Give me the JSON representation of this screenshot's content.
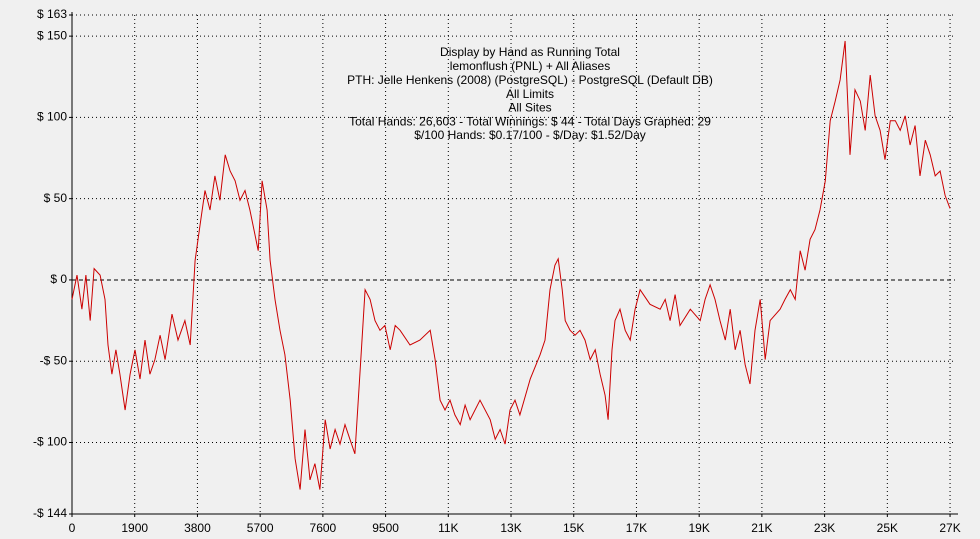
{
  "chart_data": {
    "type": "line",
    "title": "Display by Hand as Running Total",
    "subtitle": [
      "lemonflush (PNL) + All Aliases",
      "PTH: Jelle Henkens (2008) (PostgreSQL) - PostgreSQL (Default DB)",
      "All Limits",
      "All Sites",
      "Total Hands: 26,603 - Total Winnings: $ 44 - Total Days Graphed: 29",
      "$/100 Hands: $0.17/100 - $/Day: $1.52/Day"
    ],
    "x": [
      0,
      150,
      300,
      420,
      550,
      670,
      850,
      1000,
      1090,
      1210,
      1330,
      1450,
      1610,
      1760,
      1910,
      2060,
      2210,
      2360,
      2510,
      2670,
      2820,
      3030,
      3210,
      3420,
      3580,
      3730,
      3880,
      4030,
      4180,
      4330,
      4480,
      4640,
      4790,
      4940,
      5090,
      5240,
      5390,
      5540,
      5640,
      5760,
      5910,
      6000,
      6150,
      6300,
      6450,
      6610,
      6760,
      6910,
      7060,
      7210,
      7360,
      7510,
      7670,
      7820,
      7970,
      8120,
      8270,
      8420,
      8570,
      8730,
      8880,
      9030,
      9180,
      9330,
      9480,
      9640,
      9790,
      9940,
      10240,
      10540,
      10850,
      11000,
      11150,
      11300,
      11450,
      11600,
      11760,
      11910,
      12060,
      12360,
      12670,
      12820,
      12970,
      13120,
      13270,
      13420,
      13570,
      13880,
      14180,
      14330,
      14480,
      14630,
      14730,
      14850,
      14940,
      15090,
      15240,
      15390,
      15540,
      15700,
      15850,
      16000,
      16150,
      16240,
      16360,
      16450,
      16600,
      16760,
      16910,
      17060,
      17210,
      17510,
      17820,
      17970,
      18120,
      18270,
      18420,
      18730,
      19030,
      19180,
      19330,
      19480,
      19630,
      19790,
      19940,
      20090,
      20240,
      20390,
      20540,
      20690,
      20850,
      21000,
      21150,
      21450,
      21600,
      21760,
      21910,
      22060,
      22210,
      22360,
      22510,
      22660,
      22820,
      22970,
      23120,
      23270,
      23420,
      23570,
      23720,
      23880,
      24030,
      24180,
      24330,
      24480,
      24630,
      24790,
      24940,
      25090,
      25240,
      25390,
      25540,
      25690,
      25850,
      26000,
      26150,
      26300,
      26450,
      26600
    ],
    "series": [
      {
        "color": "#cc0000",
        "values": [
          -12,
          3,
          -18,
          3,
          -25,
          7,
          3,
          -12,
          -40,
          -58,
          -43,
          -58,
          -80,
          -58,
          -43,
          -61,
          -37,
          -58,
          -49,
          -34,
          -49,
          -21,
          -37,
          -25,
          -40,
          12,
          34,
          55,
          43,
          64,
          49,
          77,
          67,
          61,
          49,
          55,
          43,
          28,
          18,
          61,
          43,
          12,
          -12,
          -31,
          -46,
          -74,
          -110,
          -129,
          -92,
          -123,
          -113,
          -129,
          -86,
          -104,
          -92,
          -101,
          -89,
          -98,
          -107,
          -55,
          -6,
          -12,
          -25,
          -31,
          -28,
          -43,
          -28,
          -31,
          -40,
          -37,
          -31,
          -49,
          -74,
          -80,
          -74,
          -83,
          -89,
          -77,
          -86,
          -74,
          -86,
          -98,
          -92,
          -101,
          -80,
          -74,
          -83,
          -61,
          -46,
          -37,
          -6,
          9,
          13,
          -6,
          -25,
          -31,
          -34,
          -31,
          -37,
          -49,
          -43,
          -58,
          -71,
          -86,
          -43,
          -25,
          -18,
          -31,
          -37,
          -18,
          -6,
          -15,
          -18,
          -12,
          -25,
          -9,
          -28,
          -18,
          -25,
          -12,
          -3,
          -12,
          -25,
          -37,
          -18,
          -43,
          -31,
          -52,
          -64,
          -31,
          -12,
          -49,
          -25,
          -18,
          -12,
          -6,
          -12,
          18,
          6,
          25,
          31,
          43,
          61,
          98,
          110,
          123,
          147,
          77,
          117,
          110,
          92,
          126,
          101,
          92,
          74,
          98,
          98,
          92,
          101,
          83,
          95,
          64,
          86,
          77,
          64,
          67,
          52,
          44
        ]
      }
    ],
    "xlim": [
      0,
      26750
    ],
    "xticks": [
      0,
      1900,
      3800,
      5700,
      7600,
      9500,
      {
        "value": 11400,
        "label": "11K"
      },
      {
        "value": 13300,
        "label": "13K"
      },
      {
        "value": 15200,
        "label": "15K"
      },
      {
        "value": 17100,
        "label": "17K"
      },
      {
        "value": 19000,
        "label": "19K"
      },
      {
        "value": 20900,
        "label": "21K"
      },
      {
        "value": 22800,
        "label": "23K"
      },
      {
        "value": 24700,
        "label": "25K"
      },
      {
        "value": 26600,
        "label": "27K"
      }
    ],
    "ylim": [
      -144,
      163
    ],
    "yticks": [
      {
        "value": -144,
        "label": "-$ 144"
      },
      {
        "value": -100,
        "label": "-$ 100"
      },
      {
        "value": -50,
        "label": "-$ 50"
      },
      {
        "value": 0,
        "label": "$ 0"
      },
      {
        "value": 50,
        "label": "$ 50"
      },
      {
        "value": 100,
        "label": "$ 100"
      },
      {
        "value": 150,
        "label": "$ 150"
      },
      {
        "value": 163,
        "label": "$ 163"
      }
    ],
    "grid": true
  }
}
